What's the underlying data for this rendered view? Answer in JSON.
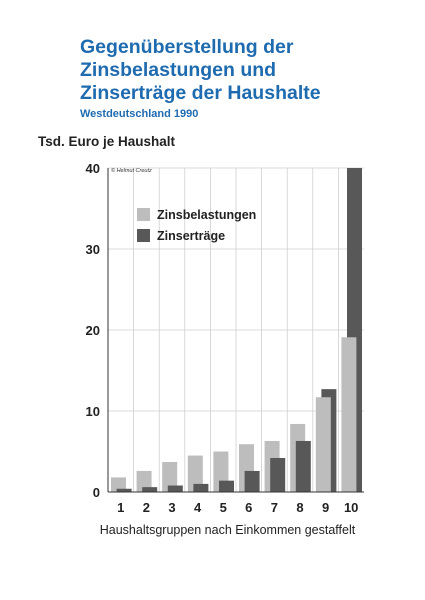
{
  "chart_data": {
    "type": "bar",
    "title": "Gegenüberstellung der Zinsbelastungen und Zinserträge der Haushalte",
    "title_lines": [
      "Gegenüberstellung der",
      "Zinsbelastungen und",
      "Zinserträge der Haushalte"
    ],
    "subtitle": "Westdeutschland 1990",
    "ylabel": "Tsd. Euro je Haushalt",
    "xlabel": "Haushaltsgruppen nach Einkommen gestaffelt",
    "credit": "© Helmut Creutz",
    "categories": [
      "1",
      "2",
      "3",
      "4",
      "5",
      "6",
      "7",
      "8",
      "9",
      "10"
    ],
    "ylim": [
      0,
      40
    ],
    "yticks": [
      0,
      10,
      20,
      30,
      40
    ],
    "grid": true,
    "legend_position": "top-left",
    "series": [
      {
        "name": "Zinsbelastungen",
        "color": "#bdbdbd",
        "values": [
          1.8,
          2.6,
          3.7,
          4.5,
          5.0,
          5.9,
          6.3,
          8.4,
          11.7,
          19.1
        ]
      },
      {
        "name": "Zinserträge",
        "color": "#585858",
        "values": [
          0.4,
          0.6,
          0.8,
          1.0,
          1.4,
          2.6,
          4.2,
          6.3,
          12.7,
          40.0
        ]
      }
    ]
  }
}
